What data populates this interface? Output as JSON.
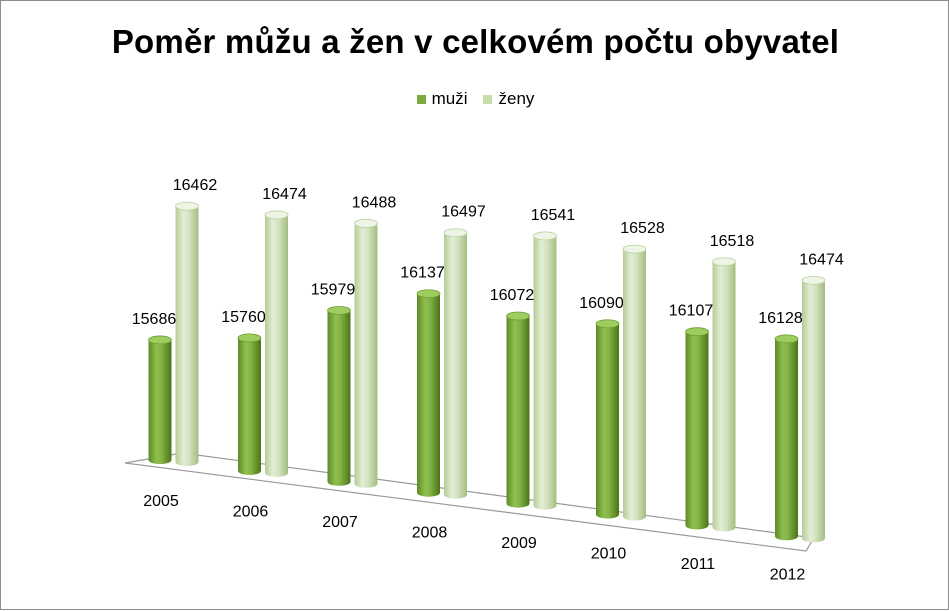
{
  "chart_data": {
    "type": "bar",
    "title": "Poměr můžu a žen v celkovém počtu obyvatel",
    "categories": [
      "2005",
      "2006",
      "2007",
      "2008",
      "2009",
      "2010",
      "2011",
      "2012"
    ],
    "series": [
      {
        "name": "muži",
        "color": "#7aab3c",
        "values": [
          15686,
          15760,
          15979,
          16137,
          16072,
          16090,
          16107,
          16128
        ]
      },
      {
        "name": "ženy",
        "color": "#c6dcab",
        "values": [
          16462,
          16474,
          16488,
          16497,
          16541,
          16528,
          16518,
          16474
        ]
      }
    ],
    "legend_position": "top",
    "grid": false,
    "style": "3d-cylinder"
  }
}
